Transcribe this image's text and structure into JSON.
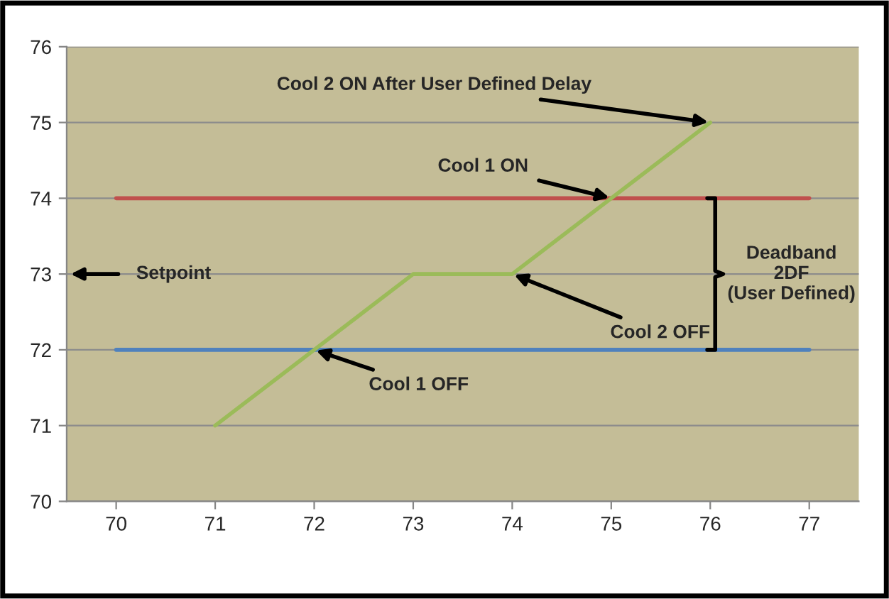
{
  "chart_data": {
    "type": "line",
    "categories": [
      "70",
      "71",
      "72",
      "73",
      "74",
      "75",
      "76",
      "77"
    ],
    "series": [
      {
        "color": "#c0504d",
        "values": [
          74,
          74,
          74,
          74,
          74,
          74,
          74,
          74
        ]
      },
      {
        "color": "#4f81bd",
        "values": [
          72,
          72,
          72,
          72,
          72,
          72,
          72,
          72
        ]
      },
      {
        "color": "#9bbb59",
        "values": [
          null,
          71,
          72,
          73,
          73,
          74,
          75,
          null
        ]
      }
    ],
    "ylim": [
      70,
      76
    ],
    "yticks": [
      70,
      71,
      72,
      73,
      74,
      75,
      76
    ],
    "grid": "y",
    "legend": false,
    "marker": "none",
    "line_style": "solid",
    "annotations": [
      {
        "text": "Cool 2 ON After User Defined Delay",
        "x": "76",
        "y": 75
      },
      {
        "text": "Cool 1 ON",
        "x": "75",
        "y": 74
      },
      "Setpoint",
      {
        "text": "Cool 2 OFF",
        "x": "74",
        "y": 73
      },
      {
        "text": "Cool 1 OFF",
        "x": "72",
        "y": 72
      },
      "Deadband\n2DF\n(User Defined)"
    ]
  }
}
